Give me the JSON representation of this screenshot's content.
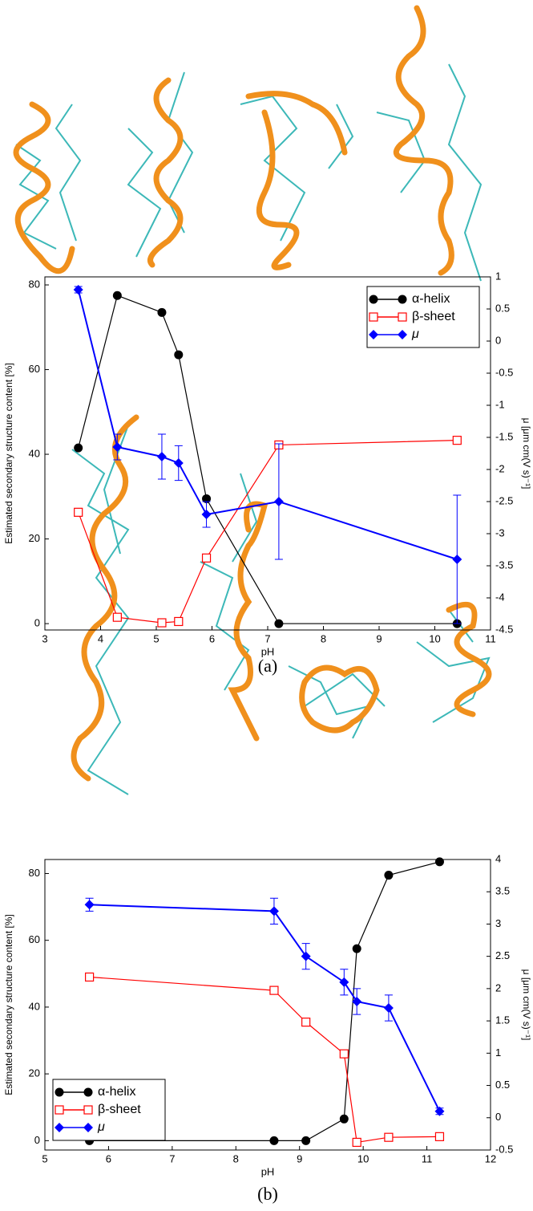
{
  "chart_data": [
    {
      "type": "line",
      "caption": "(a)",
      "x_label": "pH",
      "y_label": "Estimated secondary structure content [%]",
      "y2_label": "μ [μm cm(V s)⁻¹]",
      "x": [
        3.6,
        4.3,
        5.1,
        5.4,
        5.9,
        7.2,
        10.4
      ],
      "xlim": [
        3,
        11
      ],
      "xticks": [
        3,
        4,
        5,
        6,
        7,
        8,
        9,
        10,
        11
      ],
      "ylim": [
        -1.5,
        81.9
      ],
      "yticks": [
        0,
        20,
        40,
        60,
        80
      ],
      "y2lim": [
        -4.5,
        1
      ],
      "y2ticks": [
        1,
        0.5,
        0,
        -0.5,
        -1,
        -1.5,
        -2,
        -2.5,
        -3,
        -3.5,
        -4,
        -4.5
      ],
      "legend": "upper right",
      "series": [
        {
          "name": "α-helix",
          "color": "#000000",
          "marker": "circle",
          "values": [
            41.5,
            77.5,
            73.5,
            63.5,
            29.5,
            0,
            0
          ]
        },
        {
          "name": "β-sheet",
          "color": "#ff0000",
          "marker": "open-square",
          "values": [
            26.3,
            1.5,
            0.2,
            0.5,
            15.5,
            42.2,
            43.3
          ]
        },
        {
          "name": "μ",
          "color": "#0000ff",
          "marker": "diamond",
          "axis": "y2",
          "values": [
            0.8,
            -1.65,
            -1.8,
            -1.9,
            -2.7,
            -2.5,
            -3.4
          ],
          "errors": [
            0.05,
            0.2,
            0.35,
            0.27,
            0.2,
            0.9,
            1.0
          ]
        }
      ]
    },
    {
      "type": "line",
      "caption": "(b)",
      "x_label": "pH",
      "y_label": "Estimated secondary structure content [%]",
      "y2_label": "μ [μm cm(V s)⁻¹]",
      "x": [
        5.7,
        8.6,
        9.1,
        9.7,
        9.9,
        10.4,
        11.2
      ],
      "xlim": [
        5,
        12
      ],
      "xticks": [
        5,
        6,
        7,
        8,
        9,
        10,
        11,
        12
      ],
      "ylim": [
        -2.8,
        84.2
      ],
      "yticks": [
        0,
        20,
        40,
        60,
        80
      ],
      "y2lim": [
        -0.5,
        4
      ],
      "y2ticks": [
        4,
        3.5,
        3,
        2.5,
        2,
        1.5,
        1,
        0.5,
        0,
        -0.5
      ],
      "legend": "lower left",
      "series": [
        {
          "name": "α-helix",
          "color": "#000000",
          "marker": "circle",
          "values": [
            0,
            0,
            0,
            6.5,
            57.5,
            79.5,
            83.5
          ]
        },
        {
          "name": "β-sheet",
          "color": "#ff0000",
          "marker": "open-square",
          "values": [
            49,
            45,
            35.5,
            26,
            -0.5,
            1,
            1.2
          ]
        },
        {
          "name": "μ",
          "color": "#0000ff",
          "marker": "diamond",
          "axis": "y2",
          "values": [
            3.3,
            3.2,
            2.5,
            2.1,
            1.8,
            1.7,
            0.1
          ],
          "errors": [
            0.1,
            0.2,
            0.2,
            0.2,
            0.2,
            0.2,
            0.05
          ]
        }
      ]
    }
  ]
}
